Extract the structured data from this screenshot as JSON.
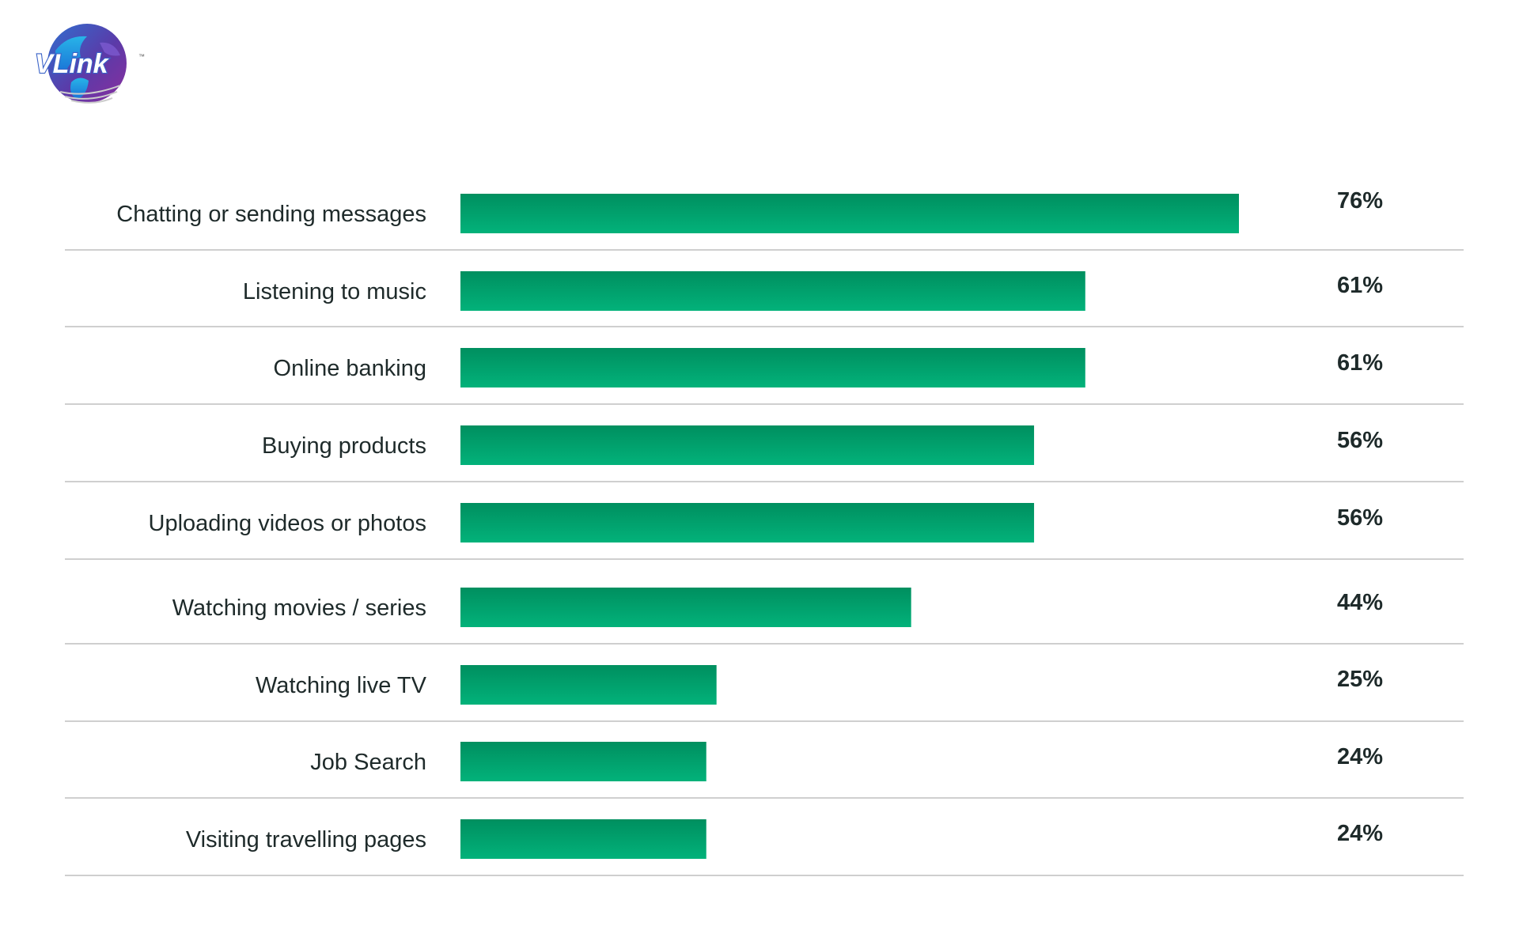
{
  "logo": {
    "text": "VLink",
    "trademark": "™"
  },
  "colors": {
    "bar_top": "#008f5f",
    "bar_bottom": "#02b27a",
    "text": "#1e2a2a",
    "separator": "#cfcfcf"
  },
  "chart_data": {
    "type": "bar",
    "orientation": "horizontal",
    "title": "",
    "xlabel": "",
    "ylabel": "",
    "xlim": [
      0,
      100
    ],
    "grid": false,
    "categories": [
      "Chatting or sending messages",
      "Listening to music",
      "Online banking",
      "Buying products",
      "Uploading videos or photos",
      "Watching movies / series",
      "Watching live TV",
      "Job Search",
      "Visiting travelling pages"
    ],
    "values": [
      76,
      61,
      61,
      56,
      56,
      44,
      25,
      24,
      24
    ],
    "value_labels": [
      "76%",
      "61%",
      "61%",
      "56%",
      "56%",
      "44%",
      "25%",
      "24%",
      "24%"
    ]
  }
}
